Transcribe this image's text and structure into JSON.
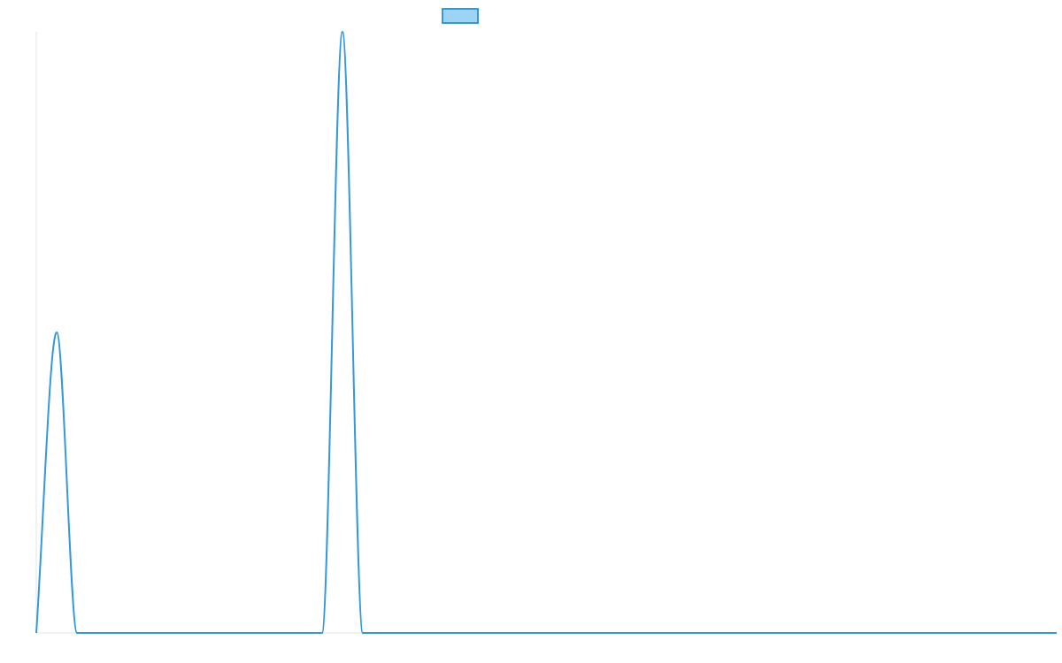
{
  "chart_data": {
    "type": "line",
    "title": "",
    "xlabel": "",
    "ylabel": "",
    "legend": {
      "position": "top-center",
      "entries": [
        {
          "label": "",
          "fill": "#9dd3f4",
          "stroke": "#3399dd"
        }
      ]
    },
    "grid": false,
    "axes_visible": false,
    "xlim": [
      0,
      50
    ],
    "ylim": [
      0,
      1
    ],
    "series": [
      {
        "color": "#3399dd",
        "x": [
          0,
          1,
          2,
          3,
          4,
          5,
          6,
          7,
          8,
          9,
          10,
          11,
          12,
          13,
          14,
          15,
          16,
          17,
          18,
          19,
          20,
          21,
          22,
          23,
          24,
          25,
          26,
          27,
          28,
          29,
          30,
          31,
          32,
          33,
          34,
          35,
          36,
          37,
          38,
          39,
          40,
          41,
          42,
          43,
          44,
          45,
          46,
          47,
          48,
          49,
          50
        ],
        "y": [
          0,
          0.5,
          0,
          0,
          0,
          0,
          0,
          0,
          0,
          0,
          0,
          0,
          0,
          0,
          0,
          1,
          0,
          0,
          0,
          0,
          0,
          0,
          0,
          0,
          0,
          0,
          0,
          0,
          0,
          0,
          0,
          0,
          0,
          0,
          0,
          0,
          0,
          0,
          0,
          0,
          0,
          0,
          0,
          0,
          0,
          0,
          0,
          0,
          0,
          0,
          0
        ]
      }
    ]
  }
}
